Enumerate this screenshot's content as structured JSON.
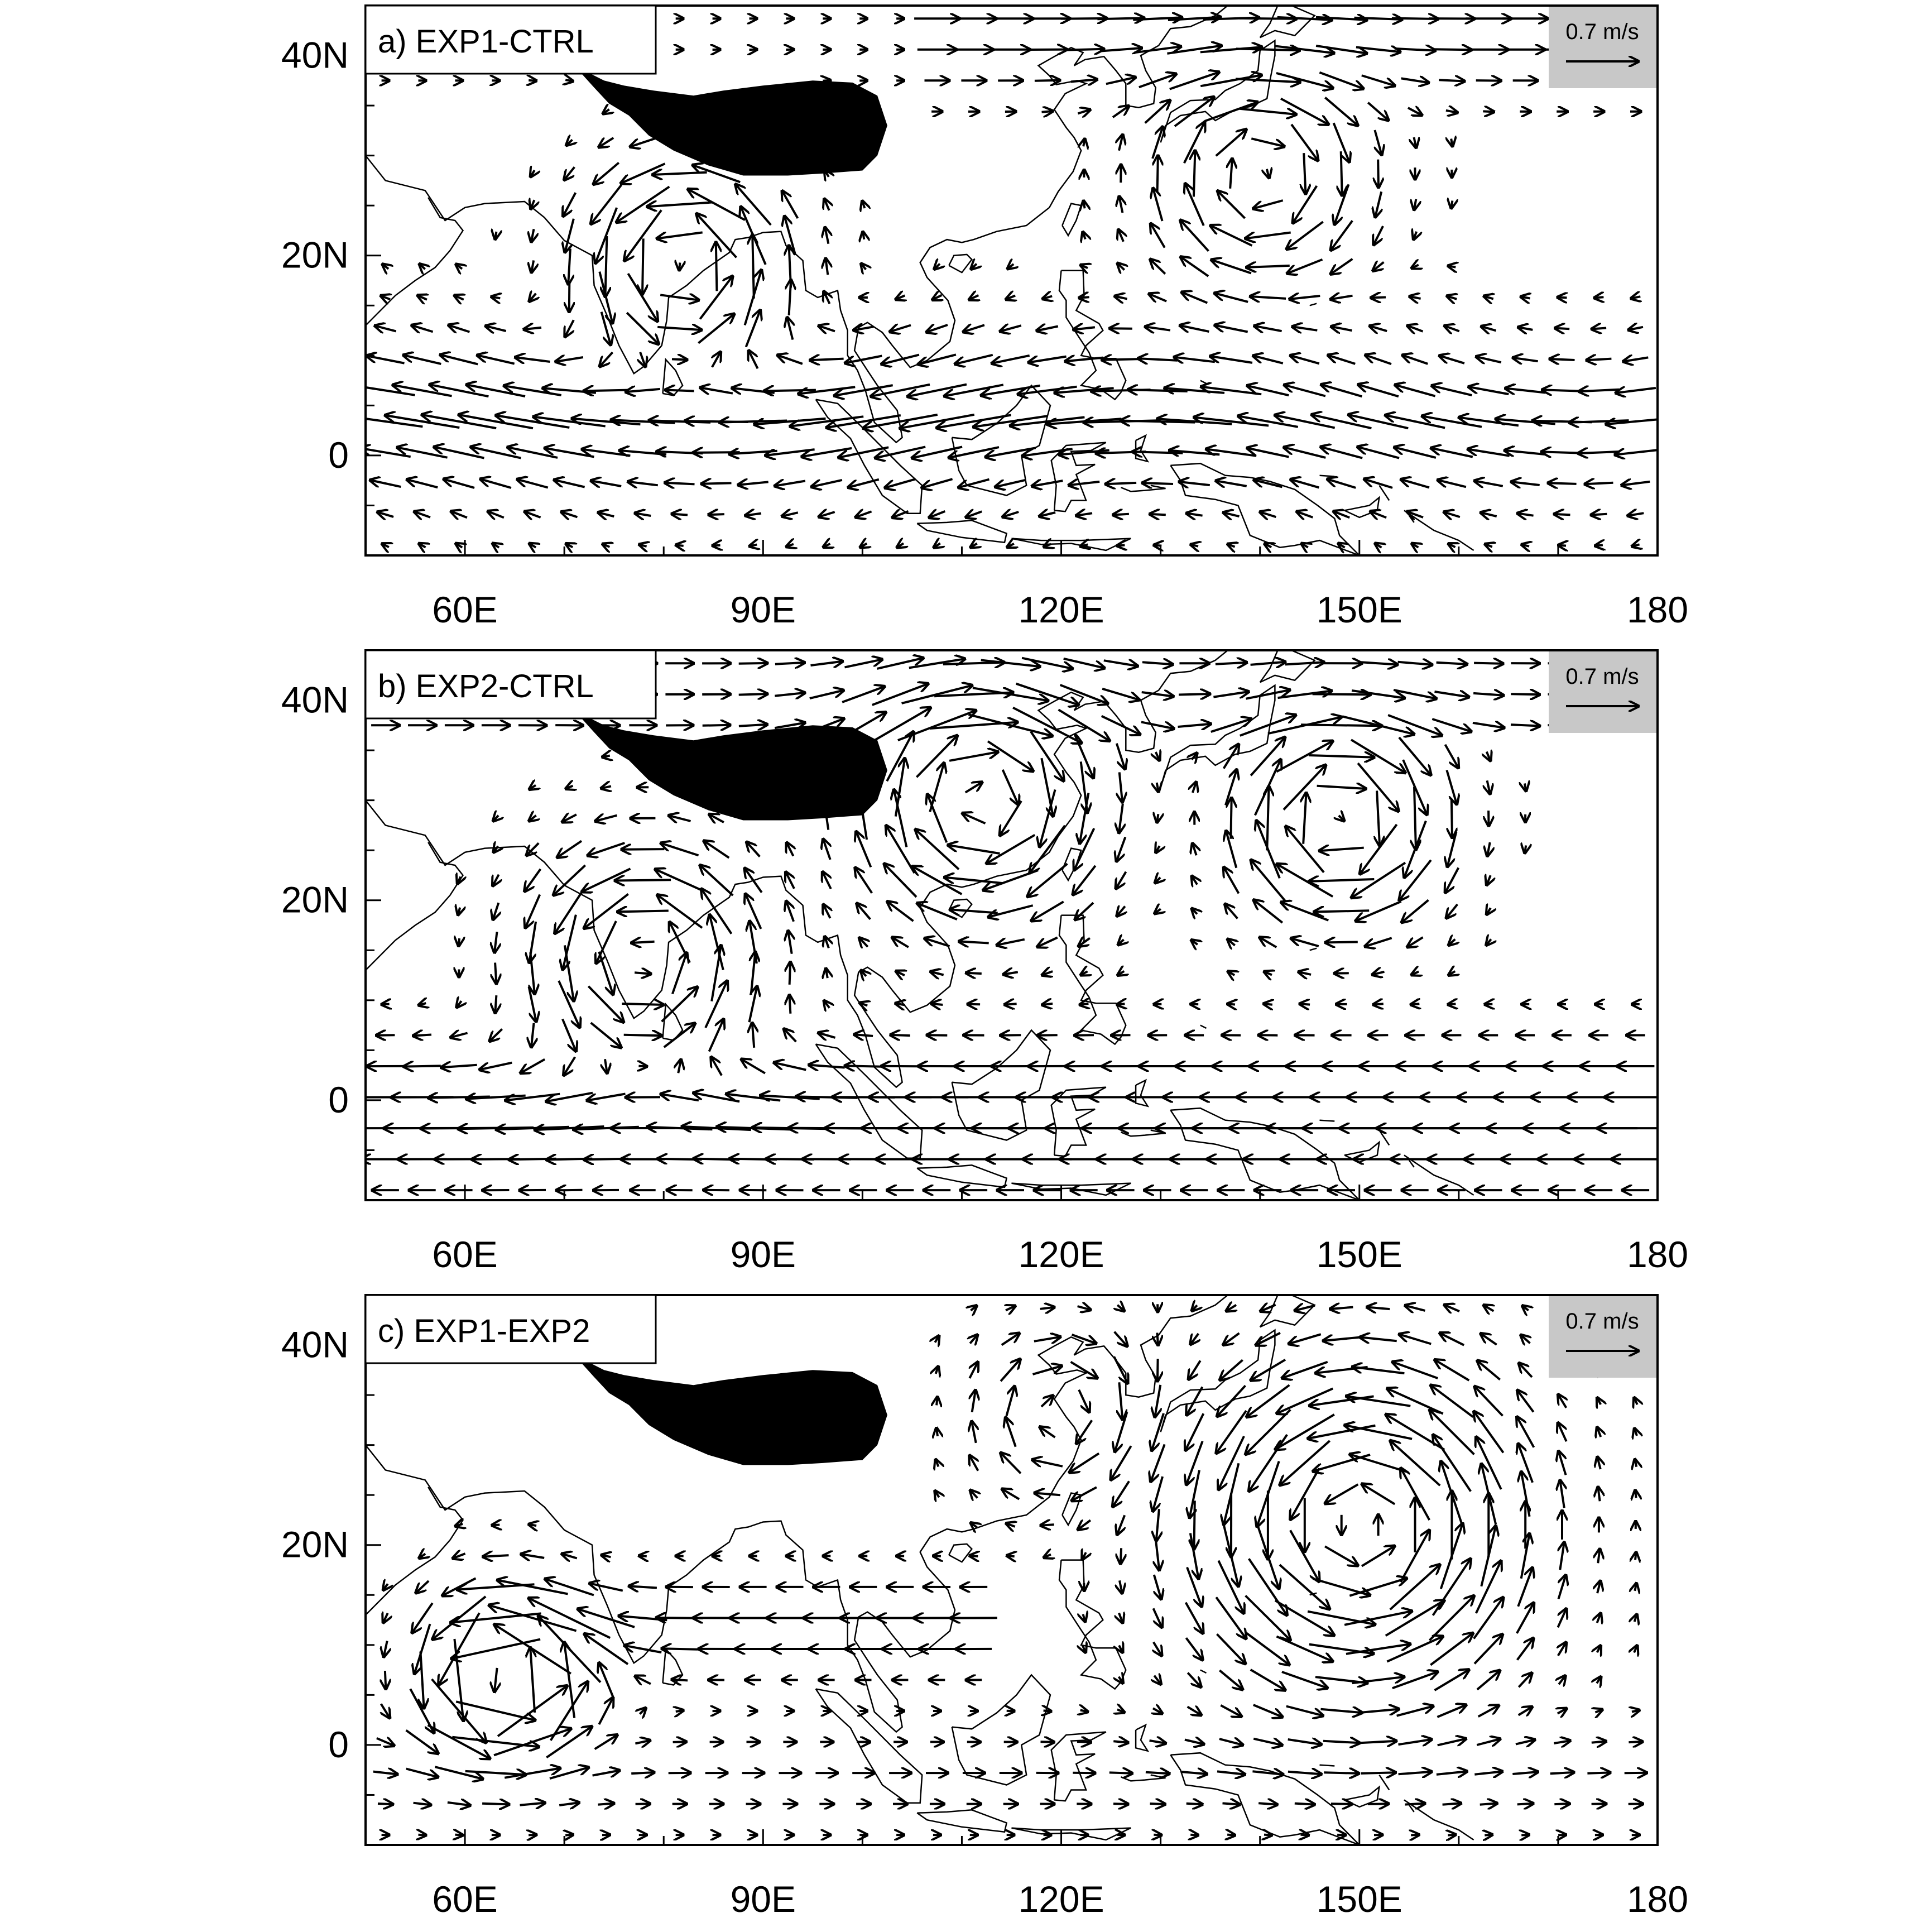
{
  "figure": {
    "panels": [
      {
        "id": "a",
        "label": "a) EXP1-CTRL",
        "pattern": "exp1-ctrl"
      },
      {
        "id": "b",
        "label": "b) EXP2-CTRL",
        "pattern": "exp2-ctrl"
      },
      {
        "id": "c",
        "label": "c) EXP1-EXP2",
        "pattern": "exp1-exp2"
      }
    ],
    "reference_vector": {
      "label": "0.7 m/s",
      "magnitude": 0.7
    },
    "x_ticks": [
      {
        "lon": 60,
        "label": "60E"
      },
      {
        "lon": 90,
        "label": "90E"
      },
      {
        "lon": 120,
        "label": "120E"
      },
      {
        "lon": 150,
        "label": "150E"
      },
      {
        "lon": 180,
        "label": "180"
      }
    ],
    "y_ticks": [
      {
        "lat": 40,
        "label": "40N"
      },
      {
        "lat": 20,
        "label": "20N"
      },
      {
        "lat": 0,
        "label": "0"
      }
    ],
    "x_range": [
      50,
      180
    ],
    "y_range": [
      -10,
      45
    ],
    "colors": {
      "mask": "#000000",
      "ref_box": "#c8c8c8",
      "line": "#000000"
    }
  }
}
